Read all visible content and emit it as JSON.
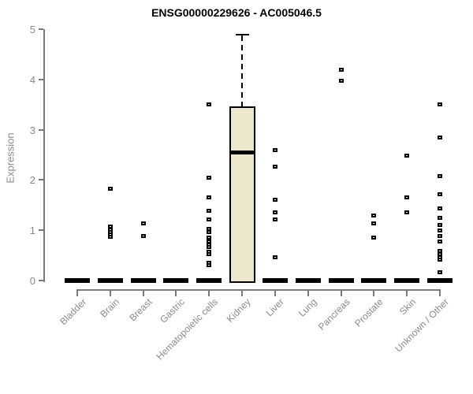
{
  "title": "ENSG00000229626 - AC005046.5",
  "chart_data": {
    "type": "boxplot",
    "title": "ENSG00000229626 - AC005046.5",
    "xlabel": "",
    "ylabel": "Expression",
    "ylim": [
      0,
      5
    ],
    "yticks": [
      0,
      1,
      2,
      3,
      4,
      5
    ],
    "grid": "off",
    "legend": "none",
    "categories": [
      "Bladder",
      "Brain",
      "Breast",
      "Gastric",
      "Hematopoietic cells",
      "Kidney",
      "Liver",
      "Lung",
      "Pancreas",
      "Prostate",
      "Skin",
      "Unknown / Other"
    ],
    "boxes": [
      {
        "category": "Bladder",
        "q1": 0,
        "median": 0,
        "q3": 0,
        "whisker_low": 0,
        "whisker_high": 0,
        "outliers": []
      },
      {
        "category": "Brain",
        "q1": 0,
        "median": 0,
        "q3": 0,
        "whisker_low": 0,
        "whisker_high": 0,
        "outliers": [
          1.82,
          1.07,
          1.01,
          0.96,
          0.91,
          0.87
        ]
      },
      {
        "category": "Breast",
        "q1": 0,
        "median": 0,
        "q3": 0,
        "whisker_low": 0,
        "whisker_high": 0,
        "outliers": [
          1.14,
          0.89
        ]
      },
      {
        "category": "Gastric",
        "q1": 0,
        "median": 0,
        "q3": 0,
        "whisker_low": 0,
        "whisker_high": 0,
        "outliers": []
      },
      {
        "category": "Hematopoietic cells",
        "q1": 0,
        "median": 0,
        "q3": 0,
        "whisker_low": 0,
        "whisker_high": 0,
        "outliers": [
          3.5,
          2.04,
          1.66,
          1.38,
          1.22,
          1.03,
          0.97,
          0.85,
          0.78,
          0.72,
          0.66,
          0.57,
          0.52,
          0.36,
          0.3
        ]
      },
      {
        "category": "Kidney",
        "q1": 0,
        "median": 2.55,
        "q3": 3.46,
        "whisker_low": 0,
        "whisker_high": 4.91,
        "outliers": []
      },
      {
        "category": "Liver",
        "q1": 0,
        "median": 0,
        "q3": 0,
        "whisker_low": 0,
        "whisker_high": 0,
        "outliers": [
          2.59,
          2.26,
          1.6,
          1.35,
          1.22,
          0.47
        ]
      },
      {
        "category": "Lung",
        "q1": 0,
        "median": 0,
        "q3": 0,
        "whisker_low": 0,
        "whisker_high": 0,
        "outliers": []
      },
      {
        "category": "Pancreas",
        "q1": 0,
        "median": 0,
        "q3": 0,
        "whisker_low": 0,
        "whisker_high": 0,
        "outliers": [
          4.2,
          3.97
        ]
      },
      {
        "category": "Prostate",
        "q1": 0,
        "median": 0,
        "q3": 0,
        "whisker_low": 0,
        "whisker_high": 0,
        "outliers": [
          1.3,
          1.14,
          0.85
        ]
      },
      {
        "category": "Skin",
        "q1": 0,
        "median": 0,
        "q3": 0,
        "whisker_low": 0,
        "whisker_high": 0,
        "outliers": [
          2.49,
          1.66,
          1.35
        ]
      },
      {
        "category": "Unknown / Other",
        "q1": 0,
        "median": 0,
        "q3": 0,
        "whisker_low": 0,
        "whisker_high": 0,
        "outliers": [
          3.51,
          2.84,
          2.08,
          1.72,
          1.43,
          1.25,
          1.11,
          1.0,
          0.88,
          0.77,
          0.58,
          0.52,
          0.47,
          0.41,
          0.17
        ]
      }
    ],
    "colors": {
      "box_fill": "#EDE8CC",
      "box_stroke": "#000000",
      "median": "#000000",
      "outlier_stroke": "#000000",
      "outlier_fill": "#ffffff",
      "axis": "#7a7a7a",
      "tick_text": "#8a8a8a",
      "title_text": "#000000"
    }
  }
}
